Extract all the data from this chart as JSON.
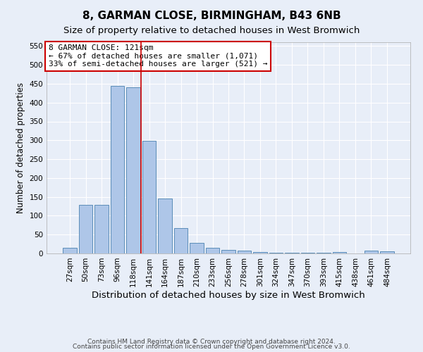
{
  "title": "8, GARMAN CLOSE, BIRMINGHAM, B43 6NB",
  "subtitle": "Size of property relative to detached houses in West Bromwich",
  "xlabel": "Distribution of detached houses by size in West Bromwich",
  "ylabel": "Number of detached properties",
  "categories": [
    "27sqm",
    "50sqm",
    "73sqm",
    "96sqm",
    "118sqm",
    "141sqm",
    "164sqm",
    "187sqm",
    "210sqm",
    "233sqm",
    "256sqm",
    "278sqm",
    "301sqm",
    "324sqm",
    "347sqm",
    "370sqm",
    "393sqm",
    "415sqm",
    "438sqm",
    "461sqm",
    "484sqm"
  ],
  "values": [
    15,
    128,
    128,
    445,
    440,
    298,
    145,
    68,
    28,
    15,
    10,
    7,
    4,
    2,
    2,
    1,
    1,
    4,
    0,
    7,
    5
  ],
  "bar_color": "#aec6e8",
  "bar_edge_color": "#5b8db8",
  "property_line_x": 4.5,
  "property_line_color": "#cc0000",
  "annotation_text": "8 GARMAN CLOSE: 121sqm\n← 67% of detached houses are smaller (1,071)\n33% of semi-detached houses are larger (521) →",
  "annotation_box_color": "#ffffff",
  "annotation_box_edge_color": "#cc0000",
  "ylim": [
    0,
    560
  ],
  "yticks": [
    0,
    50,
    100,
    150,
    200,
    250,
    300,
    350,
    400,
    450,
    500,
    550
  ],
  "footnote1": "Contains HM Land Registry data © Crown copyright and database right 2024.",
  "footnote2": "Contains public sector information licensed under the Open Government Licence v3.0.",
  "background_color": "#e8eef8",
  "grid_color": "#ffffff",
  "title_fontsize": 11,
  "subtitle_fontsize": 9.5,
  "xlabel_fontsize": 9.5,
  "ylabel_fontsize": 8.5,
  "tick_fontsize": 7.5,
  "annotation_fontsize": 8,
  "footnote_fontsize": 6.5
}
